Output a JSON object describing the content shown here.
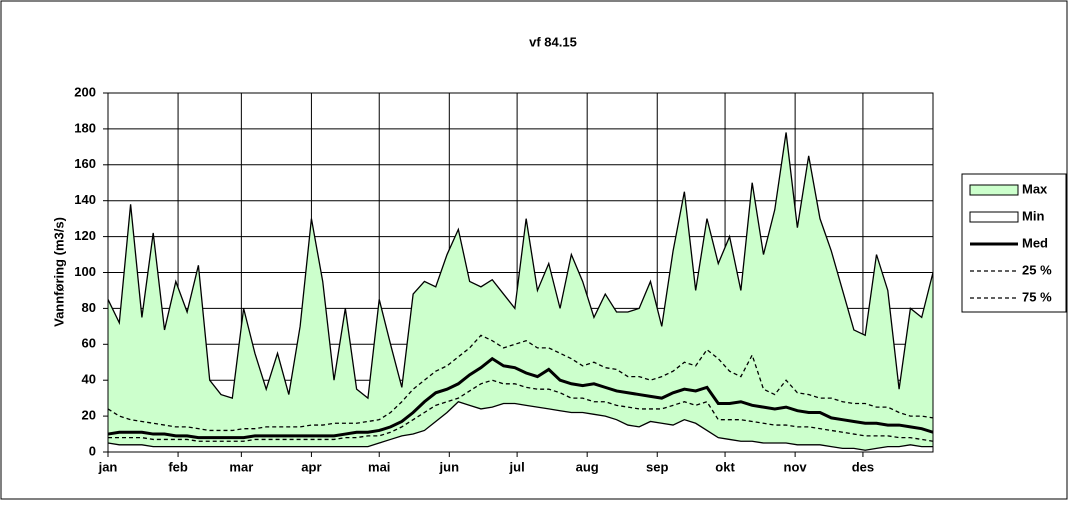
{
  "chart_data": {
    "type": "line",
    "title": "vf 84.15",
    "y_label": "Vannføring (m3/s)",
    "x": [
      0,
      5,
      10,
      15,
      20,
      25,
      30,
      35,
      40,
      45,
      50,
      55,
      60,
      65,
      70,
      75,
      80,
      85,
      90,
      95,
      100,
      105,
      110,
      115,
      120,
      125,
      130,
      135,
      140,
      145,
      150,
      155,
      160,
      165,
      170,
      175,
      180,
      185,
      190,
      195,
      200,
      205,
      210,
      215,
      220,
      225,
      230,
      235,
      240,
      245,
      250,
      255,
      260,
      265,
      270,
      275,
      280,
      285,
      290,
      295,
      300,
      305,
      310,
      315,
      320,
      325,
      330,
      335,
      340,
      345,
      350,
      355,
      360,
      365
    ],
    "xlim": [
      0,
      365
    ],
    "xticks": [
      {
        "value": 0,
        "label": "jan"
      },
      {
        "value": 31,
        "label": "feb"
      },
      {
        "value": 59,
        "label": "mar"
      },
      {
        "value": 90,
        "label": "apr"
      },
      {
        "value": 120,
        "label": "mai"
      },
      {
        "value": 151,
        "label": "jun"
      },
      {
        "value": 181,
        "label": "jul"
      },
      {
        "value": 212,
        "label": "aug"
      },
      {
        "value": 243,
        "label": "sep"
      },
      {
        "value": 273,
        "label": "okt"
      },
      {
        "value": 304,
        "label": "nov"
      },
      {
        "value": 334,
        "label": "des"
      }
    ],
    "ylim": [
      0,
      200
    ],
    "yticks": [
      0,
      20,
      40,
      60,
      80,
      100,
      120,
      140,
      160,
      180,
      200
    ],
    "grid": true,
    "legend": "right",
    "series": [
      {
        "name": "Max",
        "color": "#000000",
        "fill": "#ccffcc",
        "values": [
          85,
          72,
          138,
          75,
          122,
          68,
          95,
          78,
          104,
          40,
          32,
          30,
          80,
          55,
          35,
          55,
          32,
          70,
          130,
          95,
          40,
          80,
          35,
          30,
          85,
          60,
          36,
          88,
          95,
          92,
          110,
          124,
          95,
          92,
          96,
          88,
          80,
          130,
          90,
          105,
          80,
          110,
          95,
          75,
          88,
          78,
          78,
          80,
          95,
          70,
          112,
          145,
          90,
          130,
          105,
          120,
          90,
          150,
          110,
          135,
          178,
          125,
          165,
          130,
          112,
          90,
          68,
          65,
          110,
          90,
          35,
          80,
          75,
          100
        ]
      },
      {
        "name": "Min",
        "color": "#000000",
        "fill": "#ffffff",
        "values": [
          5,
          4,
          4,
          4,
          3,
          3,
          3,
          3,
          3,
          3,
          3,
          3,
          3,
          3,
          3,
          3,
          3,
          3,
          3,
          3,
          3,
          3,
          3,
          3,
          5,
          7,
          9,
          10,
          12,
          17,
          22,
          28,
          26,
          24,
          25,
          27,
          27,
          26,
          25,
          24,
          23,
          22,
          22,
          21,
          20,
          18,
          15,
          14,
          17,
          16,
          15,
          18,
          16,
          12,
          8,
          7,
          6,
          6,
          5,
          5,
          5,
          4,
          4,
          4,
          3,
          2,
          2,
          1,
          2,
          3,
          3,
          4,
          3,
          3
        ]
      },
      {
        "name": "Med",
        "color": "#000000",
        "width": 3,
        "values": [
          10,
          11,
          11,
          11,
          10,
          10,
          9,
          9,
          8,
          8,
          8,
          8,
          8,
          9,
          9,
          9,
          9,
          9,
          9,
          9,
          9,
          10,
          11,
          11,
          12,
          14,
          17,
          22,
          28,
          33,
          35,
          38,
          43,
          47,
          52,
          48,
          47,
          44,
          42,
          46,
          40,
          38,
          37,
          38,
          36,
          34,
          33,
          32,
          31,
          30,
          33,
          35,
          34,
          36,
          27,
          27,
          28,
          26,
          25,
          24,
          25,
          23,
          22,
          22,
          19,
          18,
          17,
          16,
          16,
          15,
          15,
          14,
          13,
          11
        ]
      },
      {
        "name": "25 %",
        "color": "#000000",
        "dashed": true,
        "values": [
          8,
          8,
          8,
          8,
          7,
          7,
          7,
          7,
          6,
          6,
          6,
          6,
          6,
          7,
          7,
          7,
          7,
          7,
          7,
          7,
          7,
          8,
          8,
          9,
          9,
          11,
          14,
          18,
          22,
          26,
          28,
          30,
          34,
          38,
          40,
          38,
          38,
          36,
          35,
          35,
          33,
          30,
          30,
          28,
          28,
          26,
          25,
          24,
          24,
          24,
          26,
          28,
          26,
          28,
          18,
          18,
          18,
          17,
          16,
          15,
          15,
          14,
          14,
          13,
          12,
          11,
          10,
          9,
          9,
          9,
          8,
          8,
          7,
          6
        ]
      },
      {
        "name": "75 %",
        "color": "#000000",
        "dashed": true,
        "values": [
          24,
          20,
          18,
          17,
          16,
          15,
          14,
          14,
          13,
          12,
          12,
          12,
          13,
          13,
          14,
          14,
          14,
          14,
          15,
          15,
          16,
          16,
          16,
          17,
          18,
          22,
          28,
          35,
          40,
          45,
          48,
          53,
          58,
          65,
          62,
          58,
          60,
          62,
          58,
          58,
          55,
          52,
          48,
          50,
          47,
          46,
          42,
          42,
          40,
          42,
          45,
          50,
          48,
          57,
          52,
          45,
          42,
          54,
          35,
          32,
          40,
          33,
          32,
          30,
          30,
          28,
          27,
          27,
          25,
          25,
          22,
          20,
          20,
          19
        ]
      }
    ]
  }
}
